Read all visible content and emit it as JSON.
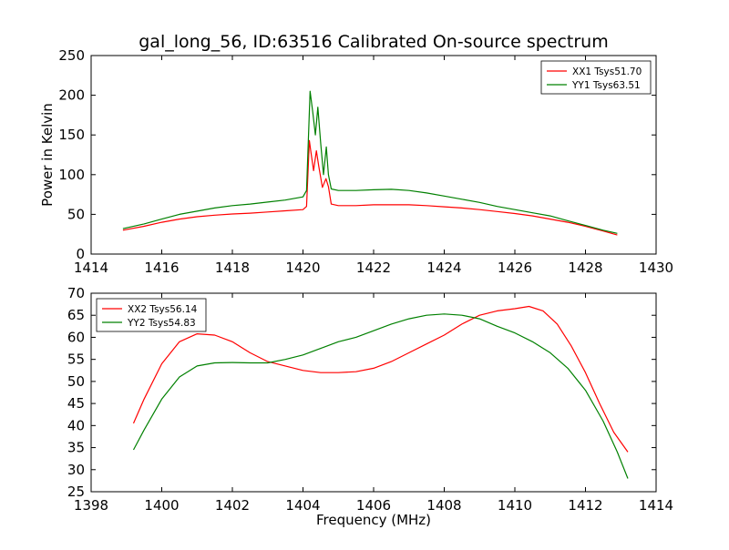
{
  "figure": {
    "title": "gal_long_56, ID:63516 Calibrated On-source spectrum"
  },
  "chart_data": [
    {
      "type": "line",
      "ylabel": "Power in Kelvin",
      "xlabel": "",
      "xlim": [
        1414,
        1430
      ],
      "ylim": [
        0,
        250
      ],
      "xticks": [
        1414,
        1416,
        1418,
        1420,
        1422,
        1424,
        1426,
        1428,
        1430
      ],
      "yticks": [
        0,
        50,
        100,
        150,
        200,
        250
      ],
      "legend_position": "top-right",
      "grid": false,
      "series": [
        {
          "name": "XX1 Tsys51.70",
          "color": "#ff0000",
          "points": [
            [
              1414.9,
              30
            ],
            [
              1415.5,
              35
            ],
            [
              1416,
              40
            ],
            [
              1416.5,
              44
            ],
            [
              1417,
              47
            ],
            [
              1417.5,
              49
            ],
            [
              1418,
              50.5
            ],
            [
              1418.5,
              51.5
            ],
            [
              1419,
              53
            ],
            [
              1419.5,
              54.5
            ],
            [
              1420,
              56
            ],
            [
              1420.1,
              60
            ],
            [
              1420.18,
              143
            ],
            [
              1420.22,
              130
            ],
            [
              1420.3,
              105
            ],
            [
              1420.38,
              130
            ],
            [
              1420.45,
              110
            ],
            [
              1420.55,
              84
            ],
            [
              1420.65,
              95
            ],
            [
              1420.72,
              85
            ],
            [
              1420.8,
              63
            ],
            [
              1421,
              61
            ],
            [
              1421.5,
              61
            ],
            [
              1422,
              62
            ],
            [
              1422.5,
              62
            ],
            [
              1423,
              62
            ],
            [
              1423.5,
              61
            ],
            [
              1424,
              59.5
            ],
            [
              1424.5,
              58
            ],
            [
              1425,
              56
            ],
            [
              1425.5,
              53.5
            ],
            [
              1426,
              51
            ],
            [
              1426.5,
              48
            ],
            [
              1427,
              44
            ],
            [
              1427.5,
              40
            ],
            [
              1428,
              35
            ],
            [
              1428.5,
              29
            ],
            [
              1428.9,
              24
            ]
          ]
        },
        {
          "name": "YY1 Tsys63.51",
          "color": "#008000",
          "points": [
            [
              1414.9,
              32
            ],
            [
              1415.5,
              38
            ],
            [
              1416,
              44
            ],
            [
              1416.5,
              50
            ],
            [
              1417,
              54
            ],
            [
              1417.5,
              58
            ],
            [
              1418,
              61
            ],
            [
              1418.5,
              63
            ],
            [
              1419,
              65.5
            ],
            [
              1419.5,
              68
            ],
            [
              1420,
              72
            ],
            [
              1420.1,
              80
            ],
            [
              1420.2,
              205
            ],
            [
              1420.28,
              178
            ],
            [
              1420.35,
              150
            ],
            [
              1420.42,
              185
            ],
            [
              1420.5,
              140
            ],
            [
              1420.58,
              100
            ],
            [
              1420.66,
              135
            ],
            [
              1420.72,
              100
            ],
            [
              1420.8,
              82
            ],
            [
              1421,
              80
            ],
            [
              1421.5,
              80
            ],
            [
              1422,
              81
            ],
            [
              1422.5,
              81.5
            ],
            [
              1423,
              80
            ],
            [
              1423.5,
              77
            ],
            [
              1424,
              73
            ],
            [
              1424.5,
              69
            ],
            [
              1425,
              65
            ],
            [
              1425.5,
              60
            ],
            [
              1426,
              56
            ],
            [
              1426.5,
              52
            ],
            [
              1427,
              48
            ],
            [
              1427.5,
              42
            ],
            [
              1428,
              36
            ],
            [
              1428.5,
              30
            ],
            [
              1428.9,
              26
            ]
          ]
        }
      ]
    },
    {
      "type": "line",
      "ylabel": "",
      "xlabel": "Frequency (MHz)",
      "xlim": [
        1398,
        1414
      ],
      "ylim": [
        25,
        70
      ],
      "xticks": [
        1398,
        1400,
        1402,
        1404,
        1406,
        1408,
        1410,
        1412,
        1414
      ],
      "yticks": [
        25,
        30,
        35,
        40,
        45,
        50,
        55,
        60,
        65,
        70
      ],
      "legend_position": "top-left",
      "grid": false,
      "series": [
        {
          "name": "XX2 Tsys56.14",
          "color": "#ff0000",
          "points": [
            [
              1399.2,
              40.5
            ],
            [
              1399.5,
              46
            ],
            [
              1400,
              54
            ],
            [
              1400.5,
              59
            ],
            [
              1401,
              60.8
            ],
            [
              1401.5,
              60.5
            ],
            [
              1402,
              59
            ],
            [
              1402.5,
              56.5
            ],
            [
              1403,
              54.5
            ],
            [
              1403.5,
              53.5
            ],
            [
              1404,
              52.5
            ],
            [
              1404.5,
              52
            ],
            [
              1405,
              52
            ],
            [
              1405.5,
              52.2
            ],
            [
              1406,
              53
            ],
            [
              1406.5,
              54.5
            ],
            [
              1407,
              56.5
            ],
            [
              1407.5,
              58.5
            ],
            [
              1408,
              60.5
            ],
            [
              1408.5,
              63
            ],
            [
              1409,
              65
            ],
            [
              1409.5,
              66
            ],
            [
              1410,
              66.5
            ],
            [
              1410.4,
              67
            ],
            [
              1410.8,
              66
            ],
            [
              1411.2,
              63
            ],
            [
              1411.6,
              58
            ],
            [
              1412,
              52
            ],
            [
              1412.4,
              45
            ],
            [
              1412.8,
              38.5
            ],
            [
              1413.2,
              34
            ]
          ]
        },
        {
          "name": "YY2 Tsys54.83",
          "color": "#008000",
          "points": [
            [
              1399.2,
              34.5
            ],
            [
              1399.5,
              39
            ],
            [
              1400,
              46
            ],
            [
              1400.5,
              51
            ],
            [
              1401,
              53.5
            ],
            [
              1401.5,
              54.2
            ],
            [
              1402,
              54.3
            ],
            [
              1402.5,
              54.2
            ],
            [
              1403,
              54.2
            ],
            [
              1403.5,
              55
            ],
            [
              1404,
              56
            ],
            [
              1404.5,
              57.5
            ],
            [
              1405,
              59
            ],
            [
              1405.5,
              60
            ],
            [
              1406,
              61.5
            ],
            [
              1406.5,
              63
            ],
            [
              1407,
              64.2
            ],
            [
              1407.5,
              65
            ],
            [
              1408,
              65.3
            ],
            [
              1408.5,
              65
            ],
            [
              1409,
              64.2
            ],
            [
              1409.5,
              62.5
            ],
            [
              1410,
              61
            ],
            [
              1410.5,
              59
            ],
            [
              1411,
              56.5
            ],
            [
              1411.5,
              53
            ],
            [
              1412,
              48
            ],
            [
              1412.5,
              41
            ],
            [
              1412.9,
              34
            ],
            [
              1413.2,
              28
            ]
          ]
        }
      ]
    }
  ]
}
